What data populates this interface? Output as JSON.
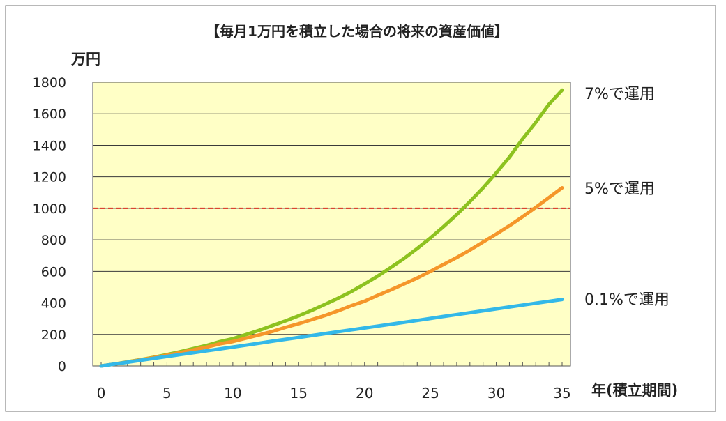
{
  "chart_data": {
    "type": "line",
    "title": "【毎月1万円を積立した場合の将来の資産価値】",
    "ylabel": "万円",
    "xlabel": "年(積立期間)",
    "ylim": [
      0,
      1800
    ],
    "xlim": [
      0,
      35
    ],
    "yticks": [
      0,
      200,
      400,
      600,
      800,
      1000,
      1200,
      1400,
      1600,
      1800
    ],
    "xticks": [
      0,
      5,
      10,
      15,
      20,
      25,
      30,
      35
    ],
    "grid": true,
    "reference_line": {
      "value": 1000,
      "color": "#d62a1e",
      "style": "dashed"
    },
    "x": [
      0,
      1,
      2,
      3,
      4,
      5,
      6,
      7,
      8,
      9,
      10,
      11,
      12,
      13,
      14,
      15,
      16,
      17,
      18,
      19,
      20,
      21,
      22,
      23,
      24,
      25,
      26,
      27,
      28,
      29,
      30,
      31,
      32,
      33,
      34,
      35
    ],
    "series": [
      {
        "name": "7%で運用",
        "color": "#8dc21f",
        "values": [
          0,
          12,
          26,
          40,
          55,
          72,
          90,
          110,
          130,
          154,
          173,
          199,
          226,
          256,
          286,
          318,
          353,
          391,
          430,
          472,
          520,
          570,
          625,
          682,
          745,
          812,
          884,
          960,
          1043,
          1130,
          1225,
          1325,
          1440,
          1545,
          1660,
          1750
        ]
      },
      {
        "name": "5%で運用",
        "color": "#f5962a",
        "values": [
          0,
          12,
          25,
          39,
          53,
          68,
          84,
          102,
          119,
          140,
          155,
          176,
          197,
          219,
          245,
          268,
          294,
          320,
          350,
          382,
          411,
          448,
          483,
          520,
          558,
          600,
          644,
          688,
          735,
          786,
          837,
          890,
          947,
          1006,
          1068,
          1130
        ]
      },
      {
        "name": "0.1%で運用",
        "color": "#33b8e8",
        "values": [
          0,
          12,
          24,
          36,
          48,
          60,
          72,
          84,
          96,
          108,
          120,
          132,
          144,
          157,
          169,
          181,
          193,
          205,
          217,
          229,
          241,
          253,
          265,
          277,
          289,
          301,
          314,
          326,
          338,
          350,
          362,
          374,
          386,
          398,
          410,
          422
        ]
      }
    ]
  }
}
